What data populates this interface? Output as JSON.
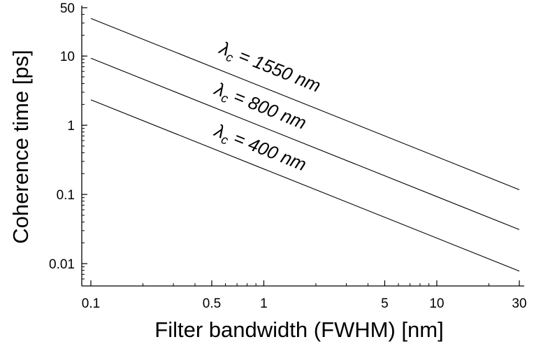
{
  "chart_data": {
    "type": "line",
    "xlabel": "Filter bandwidth (FWHM) [nm]",
    "ylabel": "Coherence time [ps]",
    "x_scale": "log",
    "y_scale": "log",
    "xlim": [
      0.1,
      30
    ],
    "ylim": [
      0.006,
      50
    ],
    "x_tick_labels": [
      "0.1",
      "0.5",
      "1",
      "5",
      "10",
      "30"
    ],
    "x_ticks": [
      0.1,
      0.5,
      1,
      5,
      10,
      30
    ],
    "y_tick_labels": [
      "0.01",
      "0.1",
      "1",
      "10",
      "50"
    ],
    "y_ticks": [
      0.01,
      0.1,
      1,
      10,
      50
    ],
    "grid": false,
    "series": [
      {
        "name": "λc = 1550 nm",
        "label_symbol": "λ",
        "label_sub": "c",
        "label_rest": " = 1550 nm",
        "x": [
          0.1,
          30
        ],
        "y": [
          35.0,
          0.117
        ]
      },
      {
        "name": "λc = 800 nm",
        "label_symbol": "λ",
        "label_sub": "c",
        "label_rest": " = 800 nm",
        "x": [
          0.1,
          30
        ],
        "y": [
          9.3,
          0.031
        ]
      },
      {
        "name": "λc = 400 nm",
        "label_symbol": "λ",
        "label_sub": "c",
        "label_rest": " = 400 nm",
        "x": [
          0.1,
          30
        ],
        "y": [
          2.33,
          0.0078
        ]
      }
    ]
  }
}
